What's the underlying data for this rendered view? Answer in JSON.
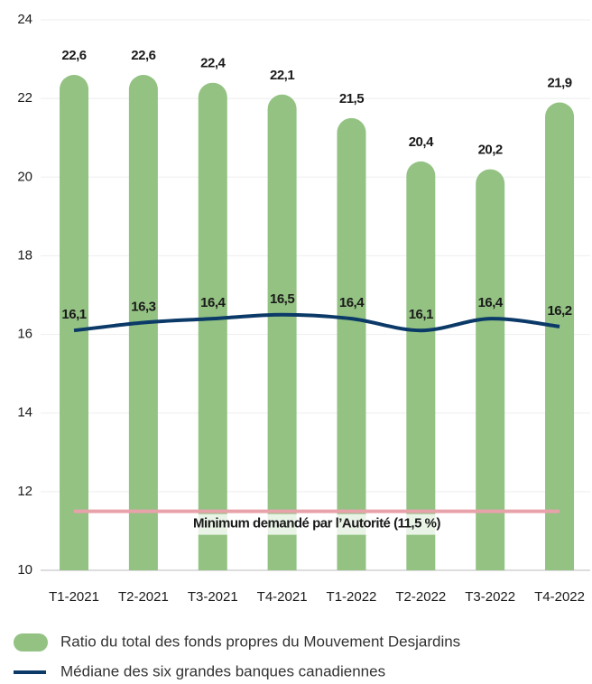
{
  "chart_data": {
    "type": "bar",
    "categories": [
      "T1-2021",
      "T2-2021",
      "T3-2021",
      "T4-2021",
      "T1-2022",
      "T2-2022",
      "T3-2022",
      "T4-2022"
    ],
    "series": [
      {
        "name": "Ratio du total des fonds propres du Mouvement Desjardins",
        "type": "bar",
        "color": "#93c283",
        "values": [
          22.6,
          22.6,
          22.4,
          22.1,
          21.5,
          20.4,
          20.2,
          21.9
        ],
        "value_labels": [
          "22,6",
          "22,6",
          "22,4",
          "22,1",
          "21,5",
          "20,4",
          "20,2",
          "21,9"
        ]
      },
      {
        "name": "Médiane des six grandes banques canadiennes",
        "type": "line",
        "color": "#0b3a68",
        "values": [
          16.1,
          16.3,
          16.4,
          16.5,
          16.4,
          16.1,
          16.4,
          16.2
        ],
        "value_labels": [
          "16,1",
          "16,3",
          "16,4",
          "16,5",
          "16,4",
          "16,1",
          "16,4",
          "16,2"
        ]
      }
    ],
    "reference_line": {
      "value": 11.5,
      "label": "Minimum demandé par l’Autorité (11,5 %)",
      "color": "#e8a2aa"
    },
    "ylim": [
      10,
      24
    ],
    "yticks": [
      10,
      12,
      14,
      16,
      18,
      20,
      22,
      24
    ],
    "grid": true
  }
}
